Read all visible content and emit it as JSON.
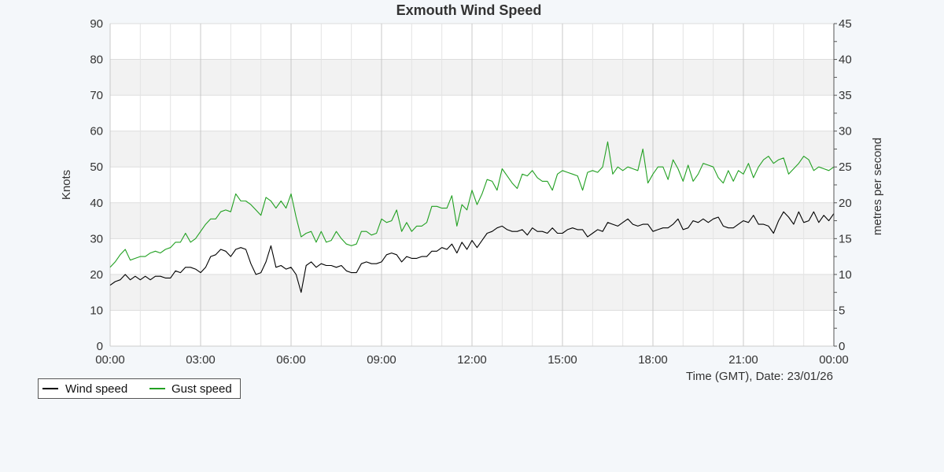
{
  "chart_data": {
    "type": "line",
    "title": "Exmouth Wind Speed",
    "ylabel": "Knots",
    "y2label": "metres per second",
    "xlabel": "Time (GMT), Date: 23/01/26",
    "ylim": [
      0,
      90
    ],
    "y2lim": [
      0,
      45
    ],
    "yticks": [
      "0",
      "10",
      "20",
      "30",
      "40",
      "50",
      "60",
      "70",
      "80",
      "90"
    ],
    "y2ticks": [
      "0",
      "5",
      "10",
      "15",
      "20",
      "25",
      "30",
      "35",
      "40",
      "45"
    ],
    "xticks": [
      "00:00",
      "03:00",
      "06:00",
      "09:00",
      "12:00",
      "15:00",
      "18:00",
      "21:00",
      "00:00"
    ],
    "x_range_hours": [
      0,
      24
    ],
    "grid": true,
    "legend_position": "bottom-left",
    "series": [
      {
        "name": "Wind speed",
        "color": "#000000",
        "x_hours": [
          0.0,
          0.167,
          0.333,
          0.5,
          0.667,
          0.833,
          1.0,
          1.167,
          1.333,
          1.5,
          1.667,
          1.833,
          2.0,
          2.167,
          2.333,
          2.5,
          2.667,
          2.833,
          3.0,
          3.167,
          3.333,
          3.5,
          3.667,
          3.833,
          4.0,
          4.167,
          4.333,
          4.5,
          4.667,
          4.833,
          5.0,
          5.167,
          5.333,
          5.5,
          5.667,
          5.833,
          6.0,
          6.167,
          6.333,
          6.5,
          6.667,
          6.833,
          7.0,
          7.167,
          7.333,
          7.5,
          7.667,
          7.833,
          8.0,
          8.167,
          8.333,
          8.5,
          8.667,
          8.833,
          9.0,
          9.167,
          9.333,
          9.5,
          9.667,
          9.833,
          10.0,
          10.167,
          10.333,
          10.5,
          10.667,
          10.833,
          11.0,
          11.167,
          11.333,
          11.5,
          11.667,
          11.833,
          12.0,
          12.167,
          12.333,
          12.5,
          12.667,
          12.833,
          13.0,
          13.167,
          13.333,
          13.5,
          13.667,
          13.833,
          14.0,
          14.167,
          14.333,
          14.5,
          14.667,
          14.833,
          15.0,
          15.167,
          15.333,
          15.5,
          15.667,
          15.833,
          16.0,
          16.167,
          16.333,
          16.5,
          16.667,
          16.833,
          17.0,
          17.167,
          17.333,
          17.5,
          17.667,
          17.833,
          18.0,
          18.167,
          18.333,
          18.5,
          18.667,
          18.833,
          19.0,
          19.167,
          19.333,
          19.5,
          19.667,
          19.833,
          20.0,
          20.167,
          20.333,
          20.5,
          20.667,
          20.833,
          21.0,
          21.167,
          21.333,
          21.5,
          21.667,
          21.833,
          22.0,
          22.167,
          22.333,
          22.5,
          22.667,
          22.833,
          23.0,
          23.167,
          23.333,
          23.5,
          23.667,
          23.833,
          24.0
        ],
        "values": [
          17,
          18,
          18.5,
          20,
          18.5,
          19.5,
          18.5,
          19.5,
          18.5,
          19.5,
          19.5,
          19,
          19,
          21,
          20.5,
          22,
          22,
          21.5,
          20.5,
          22,
          25,
          25.5,
          27,
          26.5,
          25,
          27,
          27.5,
          27,
          23,
          20,
          20.5,
          23.5,
          28,
          22,
          22.5,
          21.5,
          22,
          20,
          15,
          22.5,
          23.5,
          22,
          23,
          22.5,
          22.5,
          22,
          22.5,
          21,
          20.5,
          20.5,
          23,
          23.5,
          23,
          23,
          23.5,
          25.5,
          26,
          25.5,
          23.5,
          25,
          24.5,
          24.5,
          25,
          25,
          26.5,
          26.5,
          27.5,
          27,
          28.5,
          26,
          29,
          27,
          29.5,
          27.5,
          29.5,
          31.5,
          32,
          33,
          33.5,
          32.5,
          32,
          32,
          32.5,
          31,
          33,
          32,
          32,
          31.5,
          33,
          31.5,
          31.5,
          32.5,
          33,
          32.5,
          32.5,
          30.5,
          31.5,
          32.5,
          32,
          34.5,
          34,
          33.5,
          34.5,
          35.5,
          34,
          33.5,
          34,
          34,
          32,
          32.5,
          33,
          33,
          34,
          35.5,
          32.5,
          33,
          35,
          34.5,
          35.5,
          34.5,
          35.5,
          36,
          33.5,
          33,
          33,
          34,
          35,
          34.5,
          36.5,
          34,
          34,
          33.5,
          31.5,
          35,
          37.5,
          36,
          34,
          37.5,
          34.5,
          35,
          37.5,
          34.5,
          36.5,
          35,
          37
        ]
      },
      {
        "name": "Gust speed",
        "color": "#22a022",
        "x_hours": [
          0.0,
          0.167,
          0.333,
          0.5,
          0.667,
          0.833,
          1.0,
          1.167,
          1.333,
          1.5,
          1.667,
          1.833,
          2.0,
          2.167,
          2.333,
          2.5,
          2.667,
          2.833,
          3.0,
          3.167,
          3.333,
          3.5,
          3.667,
          3.833,
          4.0,
          4.167,
          4.333,
          4.5,
          4.667,
          4.833,
          5.0,
          5.167,
          5.333,
          5.5,
          5.667,
          5.833,
          6.0,
          6.167,
          6.333,
          6.5,
          6.667,
          6.833,
          7.0,
          7.167,
          7.333,
          7.5,
          7.667,
          7.833,
          8.0,
          8.167,
          8.333,
          8.5,
          8.667,
          8.833,
          9.0,
          9.167,
          9.333,
          9.5,
          9.667,
          9.833,
          10.0,
          10.167,
          10.333,
          10.5,
          10.667,
          10.833,
          11.0,
          11.167,
          11.333,
          11.5,
          11.667,
          11.833,
          12.0,
          12.167,
          12.333,
          12.5,
          12.667,
          12.833,
          13.0,
          13.167,
          13.333,
          13.5,
          13.667,
          13.833,
          14.0,
          14.167,
          14.333,
          14.5,
          14.667,
          14.833,
          15.0,
          15.167,
          15.333,
          15.5,
          15.667,
          15.833,
          16.0,
          16.167,
          16.333,
          16.5,
          16.667,
          16.833,
          17.0,
          17.167,
          17.333,
          17.5,
          17.667,
          17.833,
          18.0,
          18.167,
          18.333,
          18.5,
          18.667,
          18.833,
          19.0,
          19.167,
          19.333,
          19.5,
          19.667,
          19.833,
          20.0,
          20.167,
          20.333,
          20.5,
          20.667,
          20.833,
          21.0,
          21.167,
          21.333,
          21.5,
          21.667,
          21.833,
          22.0,
          22.167,
          22.333,
          22.5,
          22.667,
          22.833,
          23.0,
          23.167,
          23.333,
          23.5,
          23.667,
          23.833,
          24.0
        ],
        "values": [
          22,
          23.5,
          25.5,
          27,
          24,
          24.5,
          25,
          25,
          26,
          26.5,
          26,
          27,
          27.5,
          29,
          29,
          31.5,
          29,
          30,
          32,
          34,
          35.5,
          35.5,
          37.5,
          38,
          37.5,
          42.5,
          40.5,
          40.5,
          39.5,
          38,
          36.5,
          41.5,
          40.5,
          38.5,
          40.5,
          38.5,
          42.5,
          36,
          30.5,
          31.5,
          32,
          29,
          32,
          29,
          29.5,
          32,
          30,
          28.5,
          28,
          28.5,
          32,
          32,
          31,
          31.5,
          35.5,
          34.5,
          35,
          38,
          32,
          34.5,
          32,
          33.5,
          33.5,
          34.5,
          39,
          39,
          38.5,
          38.5,
          42,
          33.5,
          39.5,
          38,
          43.5,
          39.5,
          42.5,
          46.5,
          46,
          43.5,
          49.5,
          47.5,
          45.5,
          44,
          48,
          47.5,
          49,
          47,
          46,
          46,
          43.5,
          48,
          49,
          48.5,
          48,
          47.5,
          43.5,
          48.5,
          49,
          48.5,
          50,
          57,
          48,
          50,
          49,
          50,
          49.5,
          49,
          55,
          45.5,
          48,
          50,
          50,
          46.5,
          52,
          49.5,
          46,
          50.5,
          46,
          48,
          51,
          50.5,
          50,
          47,
          45.5,
          49,
          46,
          49,
          48,
          51,
          47,
          50,
          52,
          53,
          51,
          52,
          52.5,
          48,
          49.5,
          51,
          53,
          52,
          49,
          50,
          49.5,
          49,
          50
        ]
      }
    ]
  }
}
